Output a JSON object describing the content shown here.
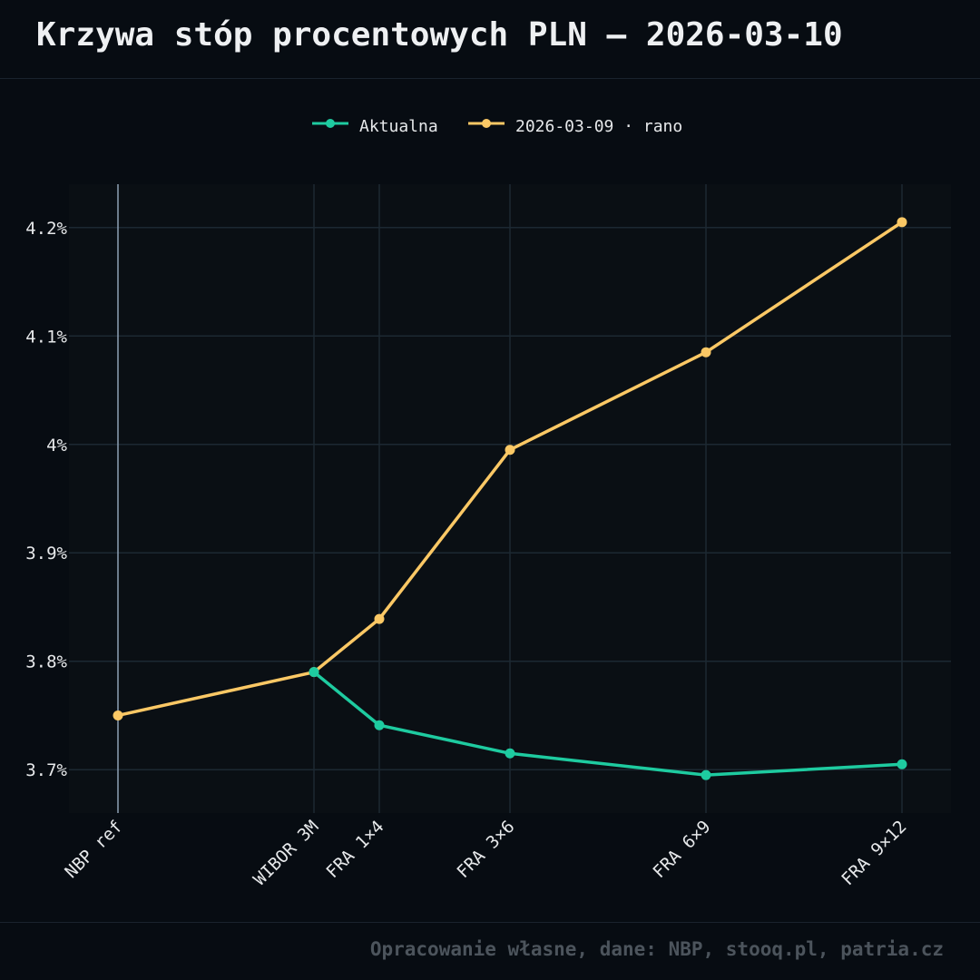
{
  "header": {
    "title": "Krzywa stóp procentowych PLN — 2026-03-10"
  },
  "footer": {
    "source": "Opracowanie własne, dane: NBP, stooq.pl, patria.cz"
  },
  "colors": {
    "current": "#1ecba0",
    "previous": "#fbc865",
    "background": "#070c12",
    "plot_background": "#0a0f14",
    "grid": "#1c2832",
    "reference_line": "#8ea0b4"
  },
  "chart_data": {
    "type": "line",
    "title": "Krzywa stóp procentowych PLN — 2026-03-10",
    "xlabel": "",
    "ylabel": "",
    "categories": [
      "NBP ref",
      "WIBOR 3M",
      "FRA 1×4",
      "FRA 3×6",
      "FRA 6×9",
      "FRA 9×12"
    ],
    "x_months": [
      0,
      3,
      4,
      6,
      9,
      12
    ],
    "series": [
      {
        "name": "Aktualna",
        "values": [
          null,
          3.79,
          3.741,
          3.715,
          3.695,
          3.705
        ]
      },
      {
        "name": "2026-03-09 · rano",
        "values": [
          3.75,
          3.79,
          3.839,
          3.995,
          4.085,
          4.205
        ]
      }
    ],
    "y_ticks": [
      3.7,
      3.8,
      3.9,
      4.0,
      4.1,
      4.2
    ],
    "y_tick_labels": [
      "3.7%",
      "3.8%",
      "3.9%",
      "4%",
      "4.1%",
      "4.2%"
    ],
    "ylim": [
      3.66,
      4.24
    ],
    "xlim": [
      -0.75,
      12.75
    ],
    "grid": true,
    "legend_position": "top-center",
    "reference_line_category": "NBP ref"
  }
}
